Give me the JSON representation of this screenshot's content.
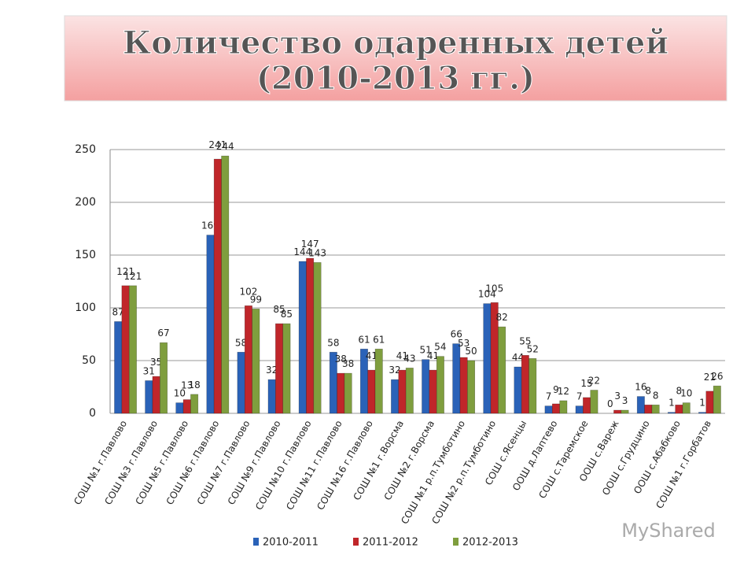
{
  "chart_data": {
    "type": "bar",
    "title": [
      "Количество одаренных детей",
      "(2010-2013 гг.)"
    ],
    "categories": [
      "СОШ №1 г.Павлово",
      "СОШ №3 г.Павлово",
      "СОШ №5 г.Павлово",
      "СОШ №6 г.Павлово",
      "СОШ №7 г.Павлово",
      "СОШ №9 г.Павлово",
      "СОШ №10 г.Павлово",
      "СОШ №11 г.Павлово",
      "СОШ №16 г.Павлово",
      "СОШ №1 г.Ворсма",
      "СОШ №2 г.Ворсма",
      "СОШ №1 р.п.Тумботино",
      "СОШ №2 р.п.Тумботино",
      "СОШ с.Ясенцы",
      "ООШ д.Лаптево",
      "СОШ с.Таремское",
      "ООШ с.Вареж",
      "ООШ с.Грудцино",
      "ООШ с.Абабково",
      "СОШ №1 г.Горбатов"
    ],
    "series": [
      {
        "name": "2010-2011",
        "color": "#2a62b8",
        "values": [
          87,
          31,
          10,
          169,
          58,
          32,
          144,
          58,
          61,
          32,
          51,
          66,
          104,
          44,
          7,
          7,
          0,
          16,
          1,
          1
        ]
      },
      {
        "name": "2011-2012",
        "color": "#c0262a",
        "values": [
          121,
          35,
          13,
          241,
          102,
          85,
          147,
          38,
          41,
          41,
          41,
          53,
          105,
          55,
          9,
          15,
          3,
          8,
          8,
          21
        ]
      },
      {
        "name": "2012-2013",
        "color": "#7f9e3e",
        "values": [
          121,
          67,
          18,
          244,
          99,
          85,
          143,
          38,
          61,
          43,
          54,
          50,
          82,
          52,
          12,
          22,
          3,
          8,
          10,
          26
        ]
      }
    ],
    "ylim": [
      0,
      250
    ],
    "yticks": [
      0,
      50,
      100,
      150,
      200,
      250
    ],
    "grid": true,
    "legend": "bottom",
    "watermark": "MyShared"
  }
}
